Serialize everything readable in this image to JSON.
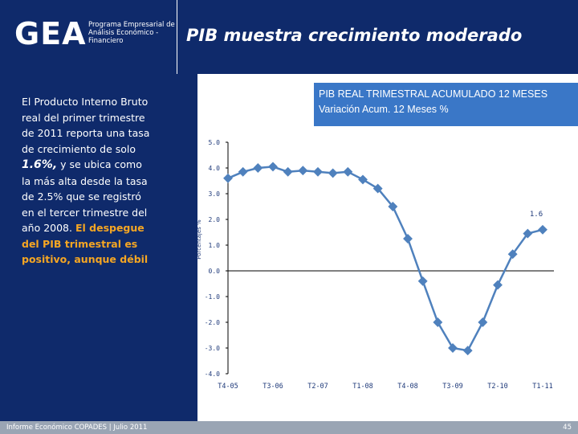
{
  "header": {
    "logo": "GEA",
    "logo_subtitle": "Programa Empresarial de Análisis Económico - Financiero",
    "title": "PIB muestra crecimiento moderado"
  },
  "left_panel": {
    "text_1": "El Producto Interno Bruto real del primer trimestre de 2011 reporta una tasa de crecimiento de solo ",
    "emphasis": "1.6%,",
    "text_2": " y se ubica como la más alta desde la tasa de 2.5% que se registró en el tercer trimestre del año 2008. ",
    "highlight": "El despegue del PIB trimestral es positivo, aunque débil"
  },
  "chart_header": {
    "line1": "PIB REAL TRIMESTRAL ACUMULADO 12 MESES",
    "line2": "Variación Acum. 12 Meses %"
  },
  "chart_data": {
    "type": "line",
    "title": "PIB REAL TRIMESTRAL ACUMULADO 12 MESES",
    "subtitle": "Variación Acum. 12 Meses %",
    "xlabel": "",
    "ylabel": "Porcentajes %",
    "ylim": [
      -4.0,
      5.0
    ],
    "yticks": [
      "5.0",
      "4.0",
      "3.0",
      "2.0",
      "1.0",
      "0.0",
      "-1.0",
      "-2.0",
      "-3.0",
      "-4.0"
    ],
    "x_ticks": [
      "T4-05",
      "T3-06",
      "T2-07",
      "T1-08",
      "T4-08",
      "T3-09",
      "T2-10",
      "T1-11"
    ],
    "series": [
      {
        "values": [
          3.6,
          3.85,
          4.0,
          4.05,
          3.85,
          3.9,
          3.85,
          3.8,
          3.85,
          3.55,
          3.2,
          2.5,
          1.25,
          -0.4,
          -2.0,
          -3.0,
          -3.1,
          -2.0,
          -0.55,
          0.65,
          1.45,
          1.6
        ]
      }
    ],
    "annotation": "1.6",
    "grid": false,
    "color": "#4f81bd"
  },
  "footer": {
    "left": "Informe Económico COPADES  |  Julio 2011",
    "page": "45"
  }
}
